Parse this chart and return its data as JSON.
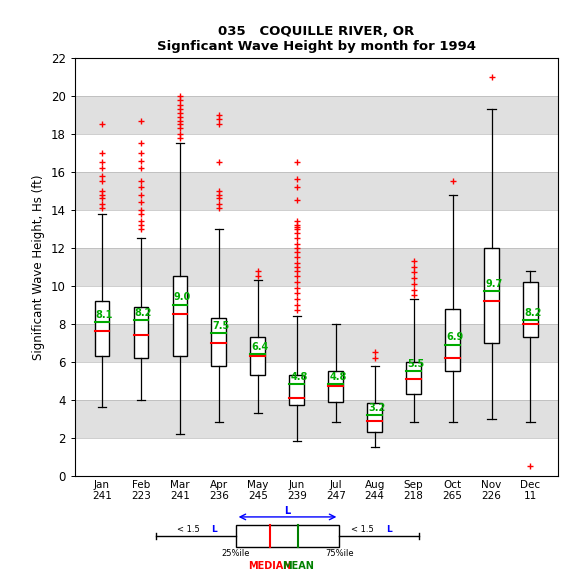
{
  "title1": "035   COQUILLE RIVER, OR",
  "title2": "Signficant Wave Height by month for 1994",
  "ylabel": "Significant Wave Height, Hs (ft)",
  "months": [
    "Jan",
    "Feb",
    "Mar",
    "Apr",
    "May",
    "Jun",
    "Jul",
    "Aug",
    "Sep",
    "Oct",
    "Nov",
    "Dec"
  ],
  "counts": [
    241,
    223,
    241,
    236,
    245,
    239,
    247,
    244,
    218,
    265,
    226,
    11
  ],
  "ylim": [
    0,
    22
  ],
  "yticks": [
    0,
    2,
    4,
    6,
    8,
    10,
    12,
    14,
    16,
    18,
    20,
    22
  ],
  "box_data": {
    "Jan": {
      "q1": 6.3,
      "median": 7.6,
      "q3": 9.2,
      "mean": 8.1,
      "whislo": 3.6,
      "whishi": 13.8,
      "fliers": [
        14.1,
        14.3,
        14.6,
        14.8,
        15.0,
        15.5,
        15.8,
        16.2,
        16.5,
        17.0,
        18.5
      ]
    },
    "Feb": {
      "q1": 6.2,
      "median": 7.4,
      "q3": 8.9,
      "mean": 8.2,
      "whislo": 4.0,
      "whishi": 12.5,
      "fliers": [
        13.0,
        13.2,
        13.4,
        13.8,
        14.0,
        14.4,
        14.8,
        15.2,
        15.5,
        16.2,
        16.6,
        17.0,
        17.5,
        18.7
      ]
    },
    "Mar": {
      "q1": 6.3,
      "median": 8.5,
      "q3": 10.5,
      "mean": 9.0,
      "whislo": 2.2,
      "whishi": 17.5,
      "fliers": [
        17.8,
        18.0,
        18.3,
        18.5,
        18.7,
        18.9,
        19.1,
        19.3,
        19.5,
        19.8,
        20.0
      ]
    },
    "Apr": {
      "q1": 5.8,
      "median": 7.0,
      "q3": 8.3,
      "mean": 7.5,
      "whislo": 2.8,
      "whishi": 13.0,
      "fliers": [
        14.1,
        14.3,
        14.6,
        14.8,
        15.0,
        16.5,
        18.5,
        18.8,
        19.0
      ]
    },
    "May": {
      "q1": 5.3,
      "median": 6.3,
      "q3": 7.3,
      "mean": 6.4,
      "whislo": 3.3,
      "whishi": 10.3,
      "fliers": [
        10.5,
        10.8
      ]
    },
    "Jun": {
      "q1": 3.7,
      "median": 4.1,
      "q3": 5.3,
      "mean": 4.8,
      "whislo": 1.8,
      "whishi": 8.4,
      "fliers": [
        8.7,
        9.0,
        9.3,
        9.6,
        9.9,
        10.2,
        10.5,
        10.8,
        11.0,
        11.2,
        11.5,
        11.8,
        12.0,
        12.2,
        12.5,
        12.8,
        13.0,
        13.1,
        13.2,
        13.4,
        14.5,
        15.2,
        15.6,
        16.5
      ]
    },
    "Jul": {
      "q1": 3.9,
      "median": 4.7,
      "q3": 5.5,
      "mean": 4.8,
      "whislo": 2.8,
      "whishi": 8.0,
      "fliers": []
    },
    "Aug": {
      "q1": 2.3,
      "median": 2.9,
      "q3": 3.8,
      "mean": 3.2,
      "whislo": 1.5,
      "whishi": 5.8,
      "fliers": [
        6.2,
        6.5
      ]
    },
    "Sep": {
      "q1": 4.3,
      "median": 5.1,
      "q3": 6.0,
      "mean": 5.5,
      "whislo": 2.8,
      "whishi": 9.3,
      "fliers": [
        9.5,
        9.8,
        10.1,
        10.4,
        10.7,
        11.0,
        11.3
      ]
    },
    "Oct": {
      "q1": 5.5,
      "median": 6.2,
      "q3": 8.8,
      "mean": 6.9,
      "whislo": 2.8,
      "whishi": 14.8,
      "fliers": [
        15.5
      ]
    },
    "Nov": {
      "q1": 7.0,
      "median": 9.2,
      "q3": 12.0,
      "mean": 9.7,
      "whislo": 3.0,
      "whishi": 19.3,
      "fliers": [
        21.0
      ]
    },
    "Dec": {
      "q1": 7.3,
      "median": 8.0,
      "q3": 10.2,
      "mean": 8.2,
      "whislo": 2.8,
      "whishi": 10.8,
      "fliers": [
        0.5
      ]
    }
  },
  "bg_colors": [
    "#ffffff",
    "#e0e0e0"
  ],
  "box_color": "#000000",
  "median_color": "#ff0000",
  "mean_color": "#00aa00",
  "flier_color": "#ff0000",
  "whisker_color": "#000000"
}
